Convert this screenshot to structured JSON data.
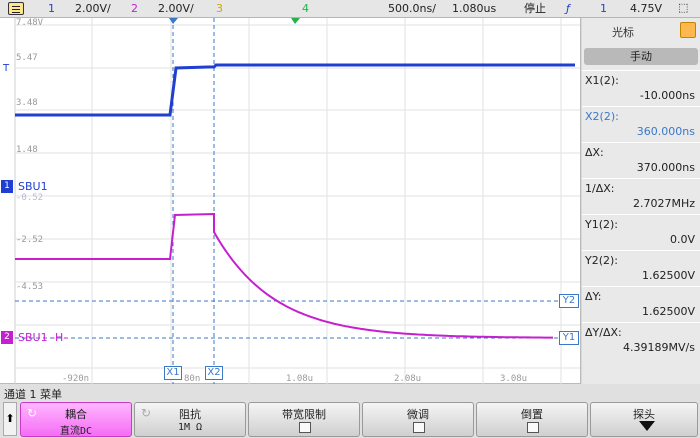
{
  "topbar": {
    "ch1_num": "1",
    "ch1_scale": "2.00V/",
    "ch2_num": "2",
    "ch2_scale": "2.00V/",
    "ch3_num": "3",
    "ch4_num": "4",
    "timebase": "500.0ns/",
    "delay": "1.080us",
    "run_state": "停止",
    "trig_source": "1",
    "trig_level": "4.75V"
  },
  "screen": {
    "y_labels": [
      "7.48V",
      "5.47",
      "3.48",
      "1.48",
      "-0.52",
      "-2.52",
      "-4.53"
    ],
    "x_labels": [
      "-920n",
      "80n",
      "1.08u",
      "2.08u",
      "3.08u"
    ],
    "ch1_label": "SBU1",
    "ch2_label": "SBU1 -H-",
    "ch1_marker": "1",
    "ch2_marker": "2",
    "trig_marker": "T",
    "cursor_x1": "X1",
    "cursor_x2": "X2",
    "cursor_y1": "Y1",
    "cursor_y2": "Y2"
  },
  "sidebar": {
    "title": "光标",
    "mode": "手动",
    "fields": [
      {
        "label": "X1(2):",
        "value": "-10.000ns"
      },
      {
        "label": "X2(2):",
        "value": "360.000ns"
      },
      {
        "label": "ΔX:",
        "value": "370.000ns"
      },
      {
        "label": "1/ΔX:",
        "value": "2.7027MHz"
      },
      {
        "label": "Y1(2):",
        "value": "0.0V"
      },
      {
        "label": "Y2(2):",
        "value": "1.62500V"
      },
      {
        "label": "ΔY:",
        "value": "1.62500V"
      },
      {
        "label": "ΔY/ΔX:",
        "value": "4.39189MV/s"
      }
    ]
  },
  "bottom": {
    "menu_title": "通道 1 菜单",
    "softkeys": [
      {
        "title": "耦合",
        "value": "直流DC"
      },
      {
        "title": "阻抗",
        "value": "1M Ω"
      },
      {
        "title": "带宽限制",
        "value": ""
      },
      {
        "title": "微调",
        "value": ""
      },
      {
        "title": "倒置",
        "value": ""
      },
      {
        "title": "探头",
        "value": ""
      }
    ]
  },
  "colors": {
    "ch1": "#1f3fd0",
    "ch2": "#c61fcf",
    "cursor": "#3a78c9",
    "ch3": "#d6a300",
    "ch4": "#22b34a",
    "grid": "#cfcfcf"
  }
}
